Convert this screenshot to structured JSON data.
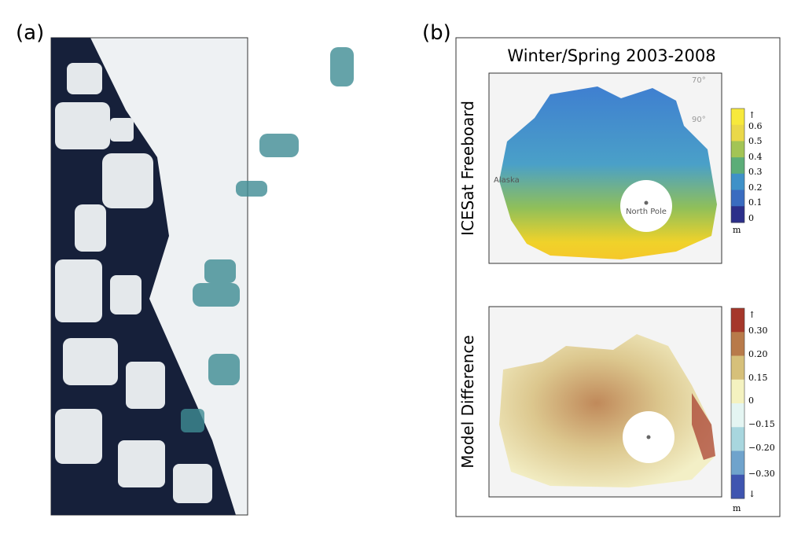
{
  "panel_a": {
    "label": "(a)"
  },
  "panel_b": {
    "label": "(b)",
    "title": "Winter/Spring 2003-2008",
    "maps": [
      {
        "ylabel": "ICESat Freeboard",
        "annotations": [
          "Alaska",
          "North Pole",
          "70°",
          "90°"
        ],
        "colorbar": {
          "labels": [
            "↑",
            "0.6",
            "0.5",
            "0.4",
            "0.3",
            "0.2",
            "0.1",
            "0"
          ],
          "unit": "m"
        }
      },
      {
        "ylabel": "Model Difference",
        "colorbar": {
          "labels": [
            "↑",
            "0.30",
            "0.20",
            "0.15",
            "0",
            "−0.15",
            "−0.20",
            "−0.30",
            "↓"
          ],
          "unit": "m"
        }
      }
    ]
  }
}
